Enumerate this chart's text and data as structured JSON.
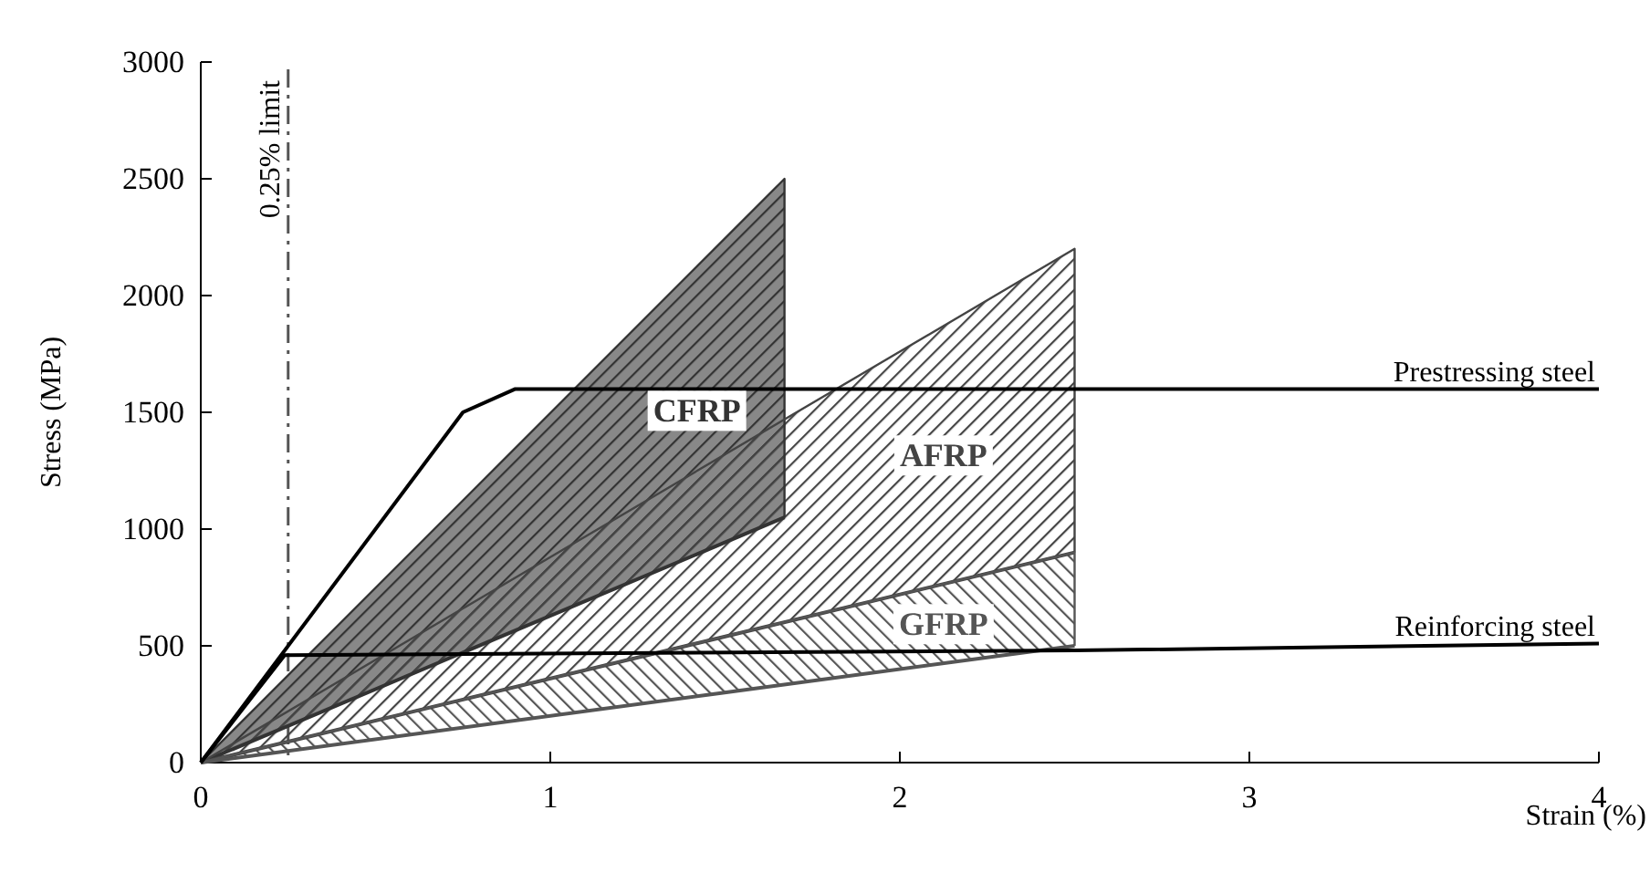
{
  "chart_data": {
    "type": "line",
    "xlabel": "Strain (%)",
    "ylabel": "Stress (MPa)",
    "xlim": [
      0,
      4
    ],
    "ylim": [
      0,
      3000
    ],
    "xticks": [
      0,
      1,
      2,
      3,
      4
    ],
    "yticks": [
      0,
      500,
      1000,
      1500,
      2000,
      2500,
      3000
    ],
    "grid": false,
    "series": [
      {
        "name": "CFRP",
        "color": "#333333",
        "x": [
          0,
          1.67,
          1.67
        ],
        "values": [
          0,
          2500,
          1050
        ]
      },
      {
        "color": "#333333",
        "x": [
          0,
          1.67
        ],
        "values": [
          0,
          1050
        ]
      },
      {
        "name": "AFRP",
        "color": "#444444",
        "x": [
          0,
          2.5,
          2.5
        ],
        "values": [
          0,
          2200,
          900
        ]
      },
      {
        "color": "#444444",
        "x": [
          0,
          2.5
        ],
        "values": [
          0,
          900
        ]
      },
      {
        "name": "GFRP",
        "color": "#555555",
        "x": [
          0,
          2.5,
          2.5
        ],
        "values": [
          0,
          900,
          500
        ]
      },
      {
        "color": "#555555",
        "x": [
          0,
          2.5
        ],
        "values": [
          0,
          500
        ]
      },
      {
        "name": "Prestressing steel",
        "color": "#000000",
        "x": [
          0,
          0.75,
          0.9,
          4
        ],
        "values": [
          0,
          1500,
          1600,
          1600
        ]
      },
      {
        "name": "Reinforcing steel",
        "color": "#000000",
        "x": [
          0,
          0.24,
          2.5,
          4
        ],
        "values": [
          0,
          460,
          480,
          510
        ]
      }
    ],
    "ref_lines": [
      {
        "axis": "x",
        "value": 0.25,
        "label": "0.25% limit",
        "color": "#555555",
        "line_style": "dashdot"
      }
    ]
  }
}
